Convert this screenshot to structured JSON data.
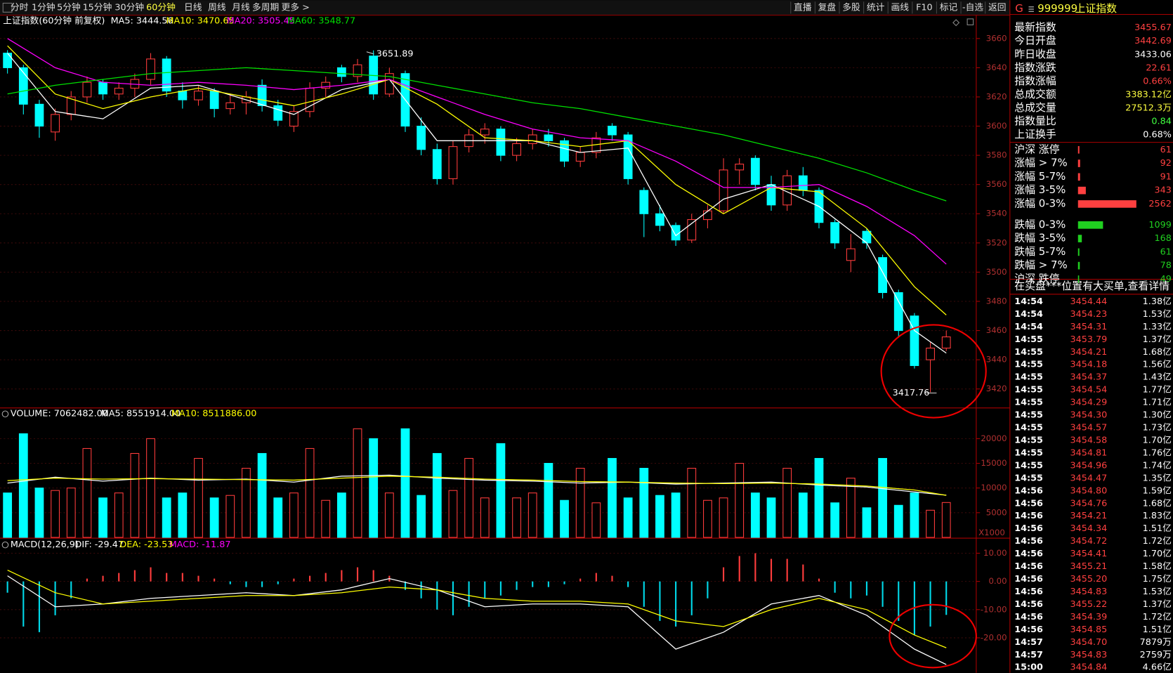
{
  "toolbar": {
    "tabs": [
      "分时",
      "1分钟",
      "5分钟",
      "15分钟",
      "30分钟",
      "60分钟",
      "日线",
      "周线",
      "月线",
      "多周期",
      "更多 >"
    ],
    "active": 5,
    "tools": [
      "直播",
      "复盘",
      "多股",
      "统计",
      "画线",
      "F10",
      "标记",
      "-自选",
      "返回"
    ]
  },
  "panel": {
    "prefix": "G",
    "code": "999999",
    "name": "上证指数",
    "stats": [
      {
        "label": "最新指数",
        "value": "3455.67",
        "color": "#ff4040"
      },
      {
        "label": "今日开盘",
        "value": "3442.69",
        "color": "#ff4040"
      },
      {
        "label": "昨日收盘",
        "value": "3433.06",
        "color": "#ffffff"
      },
      {
        "label": "指数涨跌",
        "value": "22.61",
        "color": "#ff4040"
      },
      {
        "label": "指数涨幅",
        "value": "0.66%",
        "color": "#ff4040"
      },
      {
        "label": "总成交额",
        "value": "3383.12亿",
        "color": "#ffff40"
      },
      {
        "label": "总成交量",
        "value": "27512.3万",
        "color": "#ffff40"
      },
      {
        "label": "指数量比",
        "value": "0.84",
        "color": "#40ff40"
      },
      {
        "label": "上证换手",
        "value": "0.68%",
        "color": "#ffffff"
      }
    ],
    "breadth": [
      {
        "label": "沪深 涨停",
        "value": 61,
        "color": "#ff4040"
      },
      {
        "label": "涨幅 > 7%",
        "value": 92,
        "color": "#ff4040"
      },
      {
        "label": "涨幅 5-7%",
        "value": 91,
        "color": "#ff4040"
      },
      {
        "label": "涨幅 3-5%",
        "value": 343,
        "color": "#ff4040"
      },
      {
        "label": "涨幅 0-3%",
        "value": 2562,
        "color": "#ff4040"
      },
      {
        "label": "跌幅 0-3%",
        "value": 1099,
        "color": "#20d020"
      },
      {
        "label": "跌幅 3-5%",
        "value": 168,
        "color": "#20d020"
      },
      {
        "label": "跌幅 5-7%",
        "value": 61,
        "color": "#20d020"
      },
      {
        "label": "跌幅 > 7%",
        "value": 78,
        "color": "#20d020"
      },
      {
        "label": "沪深 跌停",
        "value": 49,
        "color": "#20d020"
      }
    ],
    "message": "在买盘***位置有大买单,查看详情",
    "ticks": [
      [
        "14:54",
        "3454.44",
        "1.38亿"
      ],
      [
        "14:54",
        "3454.23",
        "1.53亿"
      ],
      [
        "14:54",
        "3454.31",
        "1.33亿"
      ],
      [
        "14:55",
        "3453.79",
        "1.37亿"
      ],
      [
        "14:55",
        "3454.21",
        "1.68亿"
      ],
      [
        "14:55",
        "3454.18",
        "1.56亿"
      ],
      [
        "14:55",
        "3454.37",
        "1.43亿"
      ],
      [
        "14:55",
        "3454.54",
        "1.77亿"
      ],
      [
        "14:55",
        "3454.29",
        "1.71亿"
      ],
      [
        "14:55",
        "3454.30",
        "1.30亿"
      ],
      [
        "14:55",
        "3454.57",
        "1.73亿"
      ],
      [
        "14:55",
        "3454.58",
        "1.70亿"
      ],
      [
        "14:55",
        "3454.81",
        "1.76亿"
      ],
      [
        "14:55",
        "3454.96",
        "1.74亿"
      ],
      [
        "14:55",
        "3454.47",
        "1.35亿"
      ],
      [
        "14:56",
        "3454.80",
        "1.59亿"
      ],
      [
        "14:56",
        "3454.76",
        "1.68亿"
      ],
      [
        "14:56",
        "3454.21",
        "1.83亿"
      ],
      [
        "14:56",
        "3454.34",
        "1.51亿"
      ],
      [
        "14:56",
        "3454.72",
        "1.72亿"
      ],
      [
        "14:56",
        "3454.41",
        "1.70亿"
      ],
      [
        "14:56",
        "3455.21",
        "1.58亿"
      ],
      [
        "14:56",
        "3455.20",
        "1.75亿"
      ],
      [
        "14:56",
        "3454.83",
        "1.53亿"
      ],
      [
        "14:56",
        "3455.22",
        "1.37亿"
      ],
      [
        "14:56",
        "3454.39",
        "1.72亿"
      ],
      [
        "14:56",
        "3454.85",
        "1.51亿"
      ],
      [
        "14:57",
        "3454.70",
        "7879万"
      ],
      [
        "14:57",
        "3454.83",
        "2759万"
      ],
      [
        "15:00",
        "3454.84",
        "4.66亿"
      ]
    ]
  },
  "chart_data": {
    "type": "candlestick",
    "title": "上证指数(60分钟 前复权)",
    "up_color": "#ff3c3c",
    "down_color": "#00ffff",
    "ylim": [
      3407,
      3676
    ],
    "yticks": [
      3420,
      3440,
      3460,
      3480,
      3500,
      3520,
      3540,
      3560,
      3580,
      3600,
      3620,
      3640,
      3660
    ],
    "candles": [
      [
        3650,
        3652,
        3636,
        3640
      ],
      [
        3640,
        3642,
        3608,
        3615
      ],
      [
        3615,
        3618,
        3592,
        3600
      ],
      [
        3596,
        3612,
        3590,
        3608
      ],
      [
        3608,
        3624,
        3604,
        3620
      ],
      [
        3620,
        3634,
        3616,
        3630
      ],
      [
        3630,
        3632,
        3618,
        3622
      ],
      [
        3622,
        3630,
        3618,
        3626
      ],
      [
        3626,
        3636,
        3620,
        3632
      ],
      [
        3632,
        3650,
        3628,
        3646
      ],
      [
        3646,
        3648,
        3620,
        3624
      ],
      [
        3624,
        3630,
        3612,
        3618
      ],
      [
        3618,
        3628,
        3614,
        3624
      ],
      [
        3624,
        3626,
        3606,
        3612
      ],
      [
        3612,
        3622,
        3608,
        3616
      ],
      [
        3616,
        3624,
        3608,
        3620
      ],
      [
        3628,
        3632,
        3610,
        3614
      ],
      [
        3614,
        3618,
        3600,
        3604
      ],
      [
        3600,
        3614,
        3596,
        3610
      ],
      [
        3610,
        3630,
        3606,
        3626
      ],
      [
        3626,
        3634,
        3620,
        3630
      ],
      [
        3640,
        3642,
        3630,
        3634
      ],
      [
        3634,
        3646,
        3630,
        3642
      ],
      [
        3648,
        3651.89,
        3618,
        3622
      ],
      [
        3622,
        3640,
        3620,
        3636
      ],
      [
        3636,
        3638,
        3596,
        3600
      ],
      [
        3600,
        3606,
        3580,
        3584
      ],
      [
        3584,
        3588,
        3560,
        3564
      ],
      [
        3564,
        3590,
        3560,
        3586
      ],
      [
        3586,
        3598,
        3582,
        3594
      ],
      [
        3594,
        3602,
        3588,
        3598
      ],
      [
        3598,
        3600,
        3576,
        3580
      ],
      [
        3580,
        3592,
        3576,
        3588
      ],
      [
        3588,
        3598,
        3584,
        3594
      ],
      [
        3594,
        3598,
        3586,
        3590
      ],
      [
        3590,
        3592,
        3572,
        3576
      ],
      [
        3576,
        3586,
        3572,
        3582
      ],
      [
        3582,
        3596,
        3578,
        3592
      ],
      [
        3600,
        3602,
        3590,
        3594
      ],
      [
        3594,
        3596,
        3560,
        3564
      ],
      [
        3556,
        3558,
        3524,
        3540
      ],
      [
        3540,
        3546,
        3528,
        3532
      ],
      [
        3532,
        3534,
        3518,
        3522
      ],
      [
        3522,
        3540,
        3520,
        3536
      ],
      [
        3536,
        3546,
        3530,
        3542
      ],
      [
        3542,
        3578,
        3540,
        3570
      ],
      [
        3570,
        3578,
        3560,
        3574
      ],
      [
        3578,
        3580,
        3556,
        3560
      ],
      [
        3560,
        3566,
        3542,
        3546
      ],
      [
        3546,
        3570,
        3542,
        3566
      ],
      [
        3566,
        3572,
        3552,
        3556
      ],
      [
        3556,
        3558,
        3530,
        3534
      ],
      [
        3534,
        3536,
        3516,
        3520
      ],
      [
        3508,
        3526,
        3500,
        3516
      ],
      [
        3528,
        3530,
        3516,
        3520
      ],
      [
        3510,
        3512,
        3482,
        3486
      ],
      [
        3486,
        3488,
        3456,
        3460
      ],
      [
        3470,
        3472,
        3434,
        3436
      ],
      [
        3440,
        3452,
        3417.76,
        3448
      ],
      [
        3448,
        3460,
        3446,
        3455.67
      ]
    ],
    "x": [
      0,
      3,
      6,
      9,
      12,
      15,
      18,
      21,
      24,
      27,
      30,
      33,
      36,
      39,
      42,
      45,
      48,
      51,
      54,
      57,
      59
    ],
    "series": [
      {
        "name": "MA5",
        "label": "MA5: 3444.56",
        "color": "#ffffff",
        "values": [
          3650,
          3610,
          3605,
          3626,
          3628,
          3618,
          3608,
          3625,
          3632,
          3590,
          3590,
          3590,
          3582,
          3585,
          3525,
          3550,
          3560,
          3545,
          3520,
          3460,
          3444.56
        ]
      },
      {
        "name": "MA10",
        "label": "MA10: 3470.65",
        "color": "#ffff00",
        "values": [
          3655,
          3622,
          3612,
          3620,
          3626,
          3620,
          3614,
          3622,
          3632,
          3615,
          3592,
          3590,
          3586,
          3590,
          3560,
          3540,
          3558,
          3555,
          3530,
          3490,
          3470.65
        ]
      },
      {
        "name": "MA20",
        "label": "MA20: 3505.45",
        "color": "#ff00ff",
        "values": [
          3660,
          3640,
          3630,
          3628,
          3630,
          3628,
          3625,
          3628,
          3632,
          3620,
          3608,
          3598,
          3592,
          3590,
          3576,
          3558,
          3558,
          3560,
          3545,
          3525,
          3505.45
        ]
      },
      {
        "name": "MA60",
        "label": "MA60: 3548.77",
        "color": "#00e000",
        "values": [
          3622,
          3628,
          3632,
          3636,
          3638,
          3640,
          3638,
          3636,
          3634,
          3628,
          3622,
          3616,
          3612,
          3606,
          3600,
          3594,
          3586,
          3578,
          3568,
          3556,
          3548.77
        ]
      }
    ],
    "volume": {
      "title": "VOLUME: 7062482.00",
      "unit": "X1000",
      "ylim": [
        0,
        23940
      ],
      "yticks": [
        5000,
        10000,
        15000,
        20000
      ],
      "values": [
        9000,
        21000,
        10000,
        9500,
        10000,
        18000,
        8000,
        9000,
        17000,
        20000,
        8000,
        9000,
        16000,
        8000,
        8500,
        14000,
        17000,
        8000,
        9000,
        18000,
        7500,
        9000,
        22000,
        20000,
        9000,
        22000,
        8500,
        17000,
        9500,
        16000,
        8000,
        19000,
        8000,
        9000,
        15000,
        7500,
        14000,
        7000,
        16000,
        8000,
        14000,
        8500,
        9000,
        14000,
        7500,
        8000,
        15000,
        9000,
        8000,
        14000,
        9000,
        16000,
        7000,
        12000,
        6000,
        16000,
        6500,
        9000,
        5500,
        7062.482
      ],
      "series": [
        {
          "name": "MA5",
          "label": "MA5: 8551914.00",
          "color": "#ffffff",
          "values": [
            11000,
            12200,
            11400,
            12000,
            11600,
            11800,
            11200,
            12400,
            12600,
            12000,
            11600,
            11400,
            11000,
            11200,
            10800,
            11000,
            11200,
            10600,
            10200,
            9200,
            8551.914
          ]
        },
        {
          "name": "MA10",
          "label": "MA10: 8511886.00",
          "color": "#ffff00",
          "values": [
            11500,
            12000,
            11800,
            11900,
            11800,
            11700,
            11600,
            12000,
            12400,
            12200,
            11800,
            11600,
            11300,
            11200,
            11000,
            10900,
            11000,
            10800,
            10400,
            9600,
            8511.886
          ]
        }
      ]
    },
    "macd": {
      "title": "MACD(12,26,9)",
      "ylim": [
        -32.4,
        11.1
      ],
      "yticks": [
        {
          "value": 10,
          "label": "10.00"
        },
        {
          "value": 0,
          "label": "0.00"
        },
        {
          "value": -10,
          "label": "-10.00"
        },
        {
          "value": -20,
          "label": "-20.00"
        }
      ],
      "series": [
        {
          "name": "DIF",
          "label": "DIF: -29.47",
          "color": "#ffffff",
          "values": [
            2,
            -9,
            -8,
            -6,
            -5,
            -4,
            -5,
            -3,
            1,
            -3,
            -9,
            -8,
            -8,
            -9,
            -24,
            -18,
            -8,
            -5,
            -12,
            -24,
            -29.47
          ]
        },
        {
          "name": "DEA",
          "label": "DEA: -23.53",
          "color": "#ffff00",
          "values": [
            4,
            -4,
            -8,
            -7,
            -6,
            -5,
            -5,
            -4,
            -2,
            -3,
            -6,
            -7,
            -7,
            -8,
            -14,
            -16,
            -10,
            -6,
            -10,
            -19,
            -23.53
          ]
        }
      ],
      "hist_label": "MACD: -11.87",
      "hist_color": "#ff00ff",
      "hist": [
        -4,
        -16,
        -18,
        -12,
        -6,
        1,
        2,
        3,
        4,
        5,
        3,
        3,
        2,
        1,
        -1,
        -2,
        -2,
        -1,
        1,
        2,
        3,
        4,
        5,
        4,
        2,
        -3,
        -6,
        -10,
        -12,
        -9,
        -6,
        -5,
        -3,
        -2,
        -2,
        -1,
        1,
        3,
        2,
        -2,
        -9,
        -14,
        -16,
        -12,
        -6,
        5,
        9,
        10,
        8,
        8,
        6,
        1,
        -4,
        -6,
        -5,
        -9,
        -14,
        -19,
        -16,
        -11.87
      ]
    }
  }
}
